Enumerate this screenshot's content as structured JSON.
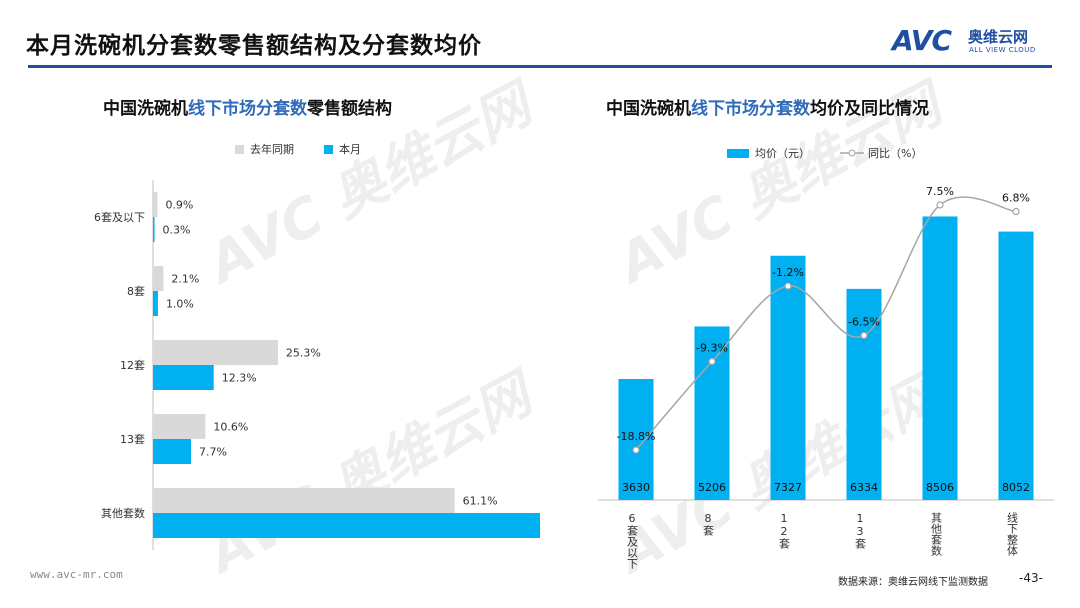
{
  "header": {
    "title": "本月洗碗机分套数零售额结构及分套数均价",
    "logo_mark": "AVC",
    "logo_cn": "奥维云网",
    "logo_en": "ALL VIEW CLOUD"
  },
  "left_chart": {
    "title_part1": "中国洗碗机",
    "title_highlight": "线下市场分套数",
    "title_part2": "零售额结构",
    "legend": [
      "去年同期",
      "本月"
    ]
  },
  "right_chart": {
    "title_part1": "中国洗碗机",
    "title_highlight": "线下市场分套数",
    "title_part2": "均价及同比情况",
    "legend": [
      "均价（元）",
      "同比（%）"
    ]
  },
  "chart_data": [
    {
      "type": "bar",
      "orientation": "horizontal",
      "categories": [
        "6套及以下",
        "8套",
        "12套",
        "13套",
        "其他套数"
      ],
      "series": [
        {
          "name": "去年同期",
          "values": [
            0.9,
            2.1,
            25.3,
            10.6,
            61.1
          ],
          "labels": [
            "0.9%",
            "2.1%",
            "25.3%",
            "10.6%",
            "61.1%"
          ],
          "color": "#d9d9d9"
        },
        {
          "name": "本月",
          "values": [
            0.3,
            1.0,
            12.3,
            7.7,
            78.7
          ],
          "labels": [
            "0.3%",
            "1.0%",
            "12.3%",
            "7.7%",
            "78.7%"
          ],
          "color": "#00b0f0"
        }
      ],
      "xlim": [
        0,
        80
      ],
      "legend_position": "top"
    },
    {
      "type": "bar",
      "categories": [
        "6套及以下",
        "8套",
        "12套",
        "13套",
        "其他套数",
        "线下整体"
      ],
      "series": [
        {
          "name": "均价（元）",
          "type": "bar",
          "values": [
            3630,
            5206,
            7327,
            6334,
            8506,
            8052
          ],
          "labels": [
            "3630",
            "5206",
            "7327",
            "6334",
            "8506",
            "8052"
          ],
          "color": "#00b0f0"
        },
        {
          "name": "同比（%）",
          "type": "line",
          "smooth": true,
          "values": [
            -18.8,
            -9.3,
            -1.2,
            -6.5,
            7.5,
            6.8
          ],
          "labels": [
            "-18.8%",
            "-9.3%",
            "-1.2%",
            "-6.5%",
            "7.5%",
            "6.8%"
          ],
          "color": "#a6a6a6"
        }
      ],
      "legend_position": "top"
    }
  ],
  "footer": {
    "website": "www.avc-mr.com",
    "source": "数据来源：奥维云网线下监测数据",
    "page": "-43-"
  }
}
